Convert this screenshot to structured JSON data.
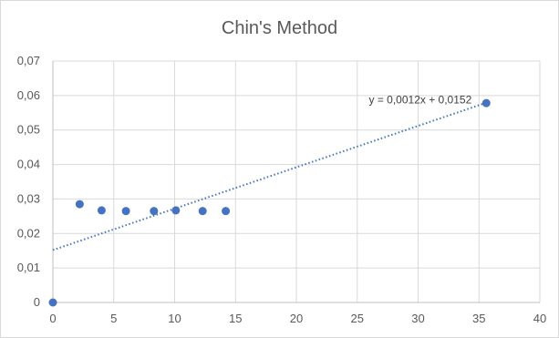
{
  "chart_data": {
    "type": "scatter",
    "title": "Chin's Method",
    "xlabel": "",
    "ylabel": "",
    "xlim": [
      0,
      40
    ],
    "ylim": [
      0,
      0.07
    ],
    "x_ticks": [
      0,
      5,
      10,
      15,
      20,
      25,
      30,
      35,
      40
    ],
    "x_tick_labels": [
      "0",
      "5",
      "10",
      "15",
      "20",
      "25",
      "30",
      "35",
      "40"
    ],
    "y_ticks": [
      0,
      0.01,
      0.02,
      0.03,
      0.04,
      0.05,
      0.06,
      0.07
    ],
    "y_tick_labels": [
      "0",
      "0,01",
      "0,02",
      "0,03",
      "0,04",
      "0,05",
      "0,06",
      "0,07"
    ],
    "grid": true,
    "legend": "none",
    "series": [
      {
        "color": "#4472c4",
        "x": [
          0,
          2.2,
          4,
          6,
          8.3,
          10.1,
          12.3,
          14.2,
          35.6
        ],
        "y": [
          0,
          0.0285,
          0.0267,
          0.0265,
          0.0265,
          0.0267,
          0.0265,
          0.0265,
          0.0578
        ]
      }
    ],
    "trendline": {
      "type": "linear",
      "slope": 0.0012,
      "intercept": 0.0152,
      "x_range": [
        0,
        35.6
      ],
      "equation_label": "y = 0,0012x + 0,0152",
      "color": "#4472c4",
      "style": "dotted"
    }
  }
}
